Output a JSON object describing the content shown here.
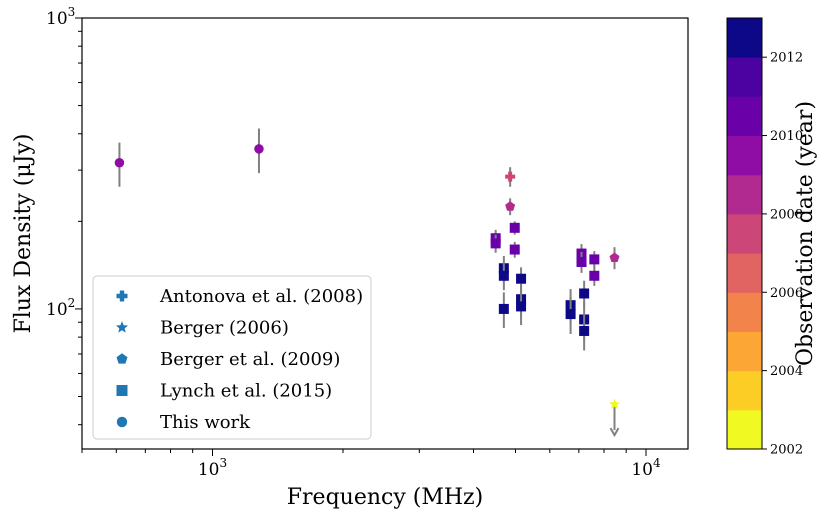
{
  "chart_data": {
    "type": "scatter",
    "xlabel": "Frequency (MHz)",
    "ylabel": "Flux Density (μJy)",
    "xscale": "log",
    "yscale": "log",
    "xlim": [
      500,
      12500
    ],
    "ylim": [
      33,
      1000
    ],
    "x_ticks": [
      {
        "value": 1000,
        "base": "10",
        "exp": "3"
      },
      {
        "value": 10000,
        "base": "10",
        "exp": "4"
      }
    ],
    "y_ticks": [
      {
        "value": 100,
        "base": "10",
        "exp": "2"
      },
      {
        "value": 1000,
        "base": "10",
        "exp": "3"
      }
    ],
    "colorbar": {
      "label": "Observation date (year)",
      "range": [
        2002,
        2013
      ],
      "ticks": [
        "2002",
        "2004",
        "2006",
        "2008",
        "2010",
        "2012"
      ],
      "colors": [
        "#f0f921",
        "#fcce25",
        "#fca636",
        "#f2844b",
        "#e16462",
        "#cc4778",
        "#b12a90",
        "#8f0da4",
        "#6a00a8",
        "#4c02a1",
        "#0d0887"
      ]
    },
    "legend": [
      {
        "label": "Antonova et al. (2008)",
        "marker": "plus"
      },
      {
        "label": "Berger (2006)",
        "marker": "star"
      },
      {
        "label": "Berger et al. (2009)",
        "marker": "pentagon"
      },
      {
        "label": "Lynch et al. (2015)",
        "marker": "square"
      },
      {
        "label": "This work",
        "marker": "circle"
      }
    ],
    "legend_color": "#1f77b4",
    "errorbar_color": "#808080",
    "series": [
      {
        "name": "Antonova et al. (2008)",
        "marker": "plus",
        "points": [
          {
            "x": 4860,
            "y": 285,
            "err": 22,
            "year": 2007.5
          }
        ]
      },
      {
        "name": "Berger (2006)",
        "marker": "star",
        "points": [
          {
            "x": 8460,
            "y": 47,
            "upper_limit": true,
            "year": 2002.5
          }
        ]
      },
      {
        "name": "Berger et al. (2009)",
        "marker": "pentagon",
        "points": [
          {
            "x": 4860,
            "y": 225,
            "err": 15,
            "year": 2008.5
          },
          {
            "x": 8460,
            "y": 150,
            "err": 13,
            "year": 2008.5
          }
        ]
      },
      {
        "name": "Lynch et al. (2015)",
        "marker": "square",
        "points": [
          {
            "x": 4500,
            "y": 175,
            "err": 12,
            "year": 2010.5
          },
          {
            "x": 4500,
            "y": 168,
            "err": 12,
            "year": 2010.5
          },
          {
            "x": 4980,
            "y": 190,
            "err": 10,
            "year": 2010.5
          },
          {
            "x": 4980,
            "y": 160,
            "err": 10,
            "year": 2010.5
          },
          {
            "x": 4700,
            "y": 138,
            "err": 14,
            "year": 2012.5
          },
          {
            "x": 4700,
            "y": 130,
            "err": 14,
            "year": 2012.5
          },
          {
            "x": 4700,
            "y": 100,
            "err": 14,
            "year": 2012.5
          },
          {
            "x": 5150,
            "y": 127,
            "err": 12,
            "year": 2012.5
          },
          {
            "x": 5150,
            "y": 108,
            "err": 14,
            "year": 2012.5
          },
          {
            "x": 5150,
            "y": 102,
            "err": 14,
            "year": 2012.5
          },
          {
            "x": 6700,
            "y": 103,
            "err": 14,
            "year": 2012.5
          },
          {
            "x": 6700,
            "y": 96,
            "err": 14,
            "year": 2012.5
          },
          {
            "x": 7100,
            "y": 155,
            "err": 12,
            "year": 2010.5
          },
          {
            "x": 7100,
            "y": 145,
            "err": 12,
            "year": 2010.5
          },
          {
            "x": 7600,
            "y": 148,
            "err": 10,
            "year": 2010.5
          },
          {
            "x": 7600,
            "y": 130,
            "err": 10,
            "year": 2010.5
          },
          {
            "x": 7200,
            "y": 113,
            "err": 12,
            "year": 2012.5
          },
          {
            "x": 7200,
            "y": 92,
            "err": 14,
            "year": 2012.5
          },
          {
            "x": 7200,
            "y": 84,
            "err": 12,
            "year": 2012.5
          }
        ]
      },
      {
        "name": "This work",
        "marker": "circle",
        "points": [
          {
            "x": 610,
            "y": 318,
            "err": 55,
            "year": 2009.5
          },
          {
            "x": 1280,
            "y": 355,
            "err": 62,
            "year": 2009.5
          }
        ]
      }
    ]
  }
}
